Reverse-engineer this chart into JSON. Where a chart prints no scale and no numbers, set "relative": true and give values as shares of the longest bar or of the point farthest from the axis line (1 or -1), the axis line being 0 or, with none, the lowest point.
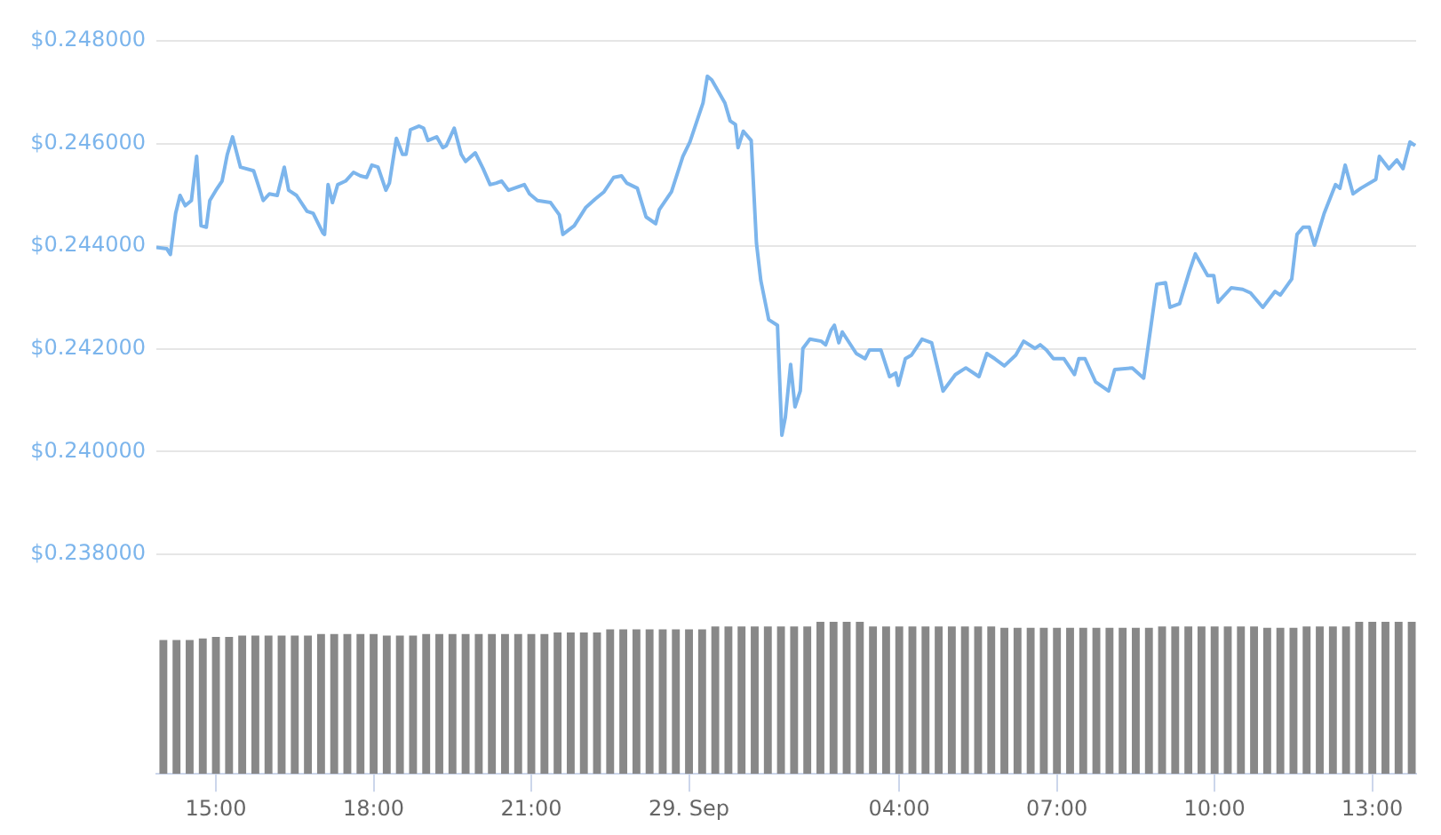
{
  "chart_data": [
    {
      "type": "line",
      "color": "#7cb5ec",
      "marker": "none",
      "line_style": "solid",
      "grid": "y",
      "legend": false,
      "tick_labels": "y",
      "xlim": [
        "--09-28T13:52",
        "--09-29T13:50"
      ],
      "ylim": [
        0.238,
        0.248
      ],
      "yticks": [
        {
          "value": 0.238,
          "label": "$0.238000"
        },
        {
          "value": 0.24,
          "label": "$0.240000"
        },
        {
          "value": 0.242,
          "label": "$0.242000"
        },
        {
          "value": 0.244,
          "label": "$0.244000"
        },
        {
          "value": 0.246,
          "label": "$0.246000"
        },
        {
          "value": 0.248,
          "label": "$0.248000"
        }
      ],
      "x": [
        "--09-28T13:52",
        "--09-28T14:04",
        "--09-28T14:08",
        "--09-28T14:14",
        "--09-28T14:19",
        "--09-28T14:25",
        "--09-28T14:32",
        "--09-28T14:38",
        "--09-28T14:43",
        "--09-28T14:49",
        "--09-28T14:53",
        "--09-28T15:00",
        "--09-28T15:07",
        "--09-28T15:13",
        "--09-28T15:19",
        "--09-28T15:28",
        "--09-28T15:43",
        "--09-28T15:54",
        "--09-28T16:01",
        "--09-28T16:10",
        "--09-28T16:18",
        "--09-28T16:23",
        "--09-28T16:32",
        "--09-28T16:44",
        "--09-28T16:51",
        "--09-28T17:02",
        "--09-28T17:04",
        "--09-28T17:08",
        "--09-28T17:13",
        "--09-28T17:19",
        "--09-28T17:28",
        "--09-28T17:37",
        "--09-28T17:45",
        "--09-28T17:52",
        "--09-28T17:58",
        "--09-28T18:05",
        "--09-28T18:14",
        "--09-28T18:18",
        "--09-28T18:26",
        "--09-28T18:33",
        "--09-28T18:37",
        "--09-28T18:42",
        "--09-28T18:52",
        "--09-28T18:57",
        "--09-28T19:02",
        "--09-28T19:12",
        "--09-28T19:19",
        "--09-28T19:23",
        "--09-28T19:32",
        "--09-28T19:40",
        "--09-28T19:45",
        "--09-28T19:56",
        "--09-28T20:05",
        "--09-28T20:13",
        "--09-28T20:20",
        "--09-28T20:26",
        "--09-28T20:34",
        "--09-28T20:52",
        "--09-28T20:58",
        "--09-28T21:07",
        "--09-28T21:22",
        "--09-28T21:32",
        "--09-28T21:36",
        "--09-28T21:49",
        "--09-28T22:02",
        "--09-28T22:13",
        "--09-28T22:23",
        "--09-28T22:34",
        "--09-28T22:43",
        "--09-28T22:49",
        "--09-28T23:01",
        "--09-28T23:11",
        "--09-28T23:22",
        "--09-28T23:26",
        "--09-28T23:40",
        "--09-28T23:53",
        "--09-29T00:01",
        "--09-29T00:16",
        "--09-29T00:21",
        "--09-29T00:26",
        "--09-29T00:34",
        "--09-29T00:41",
        "--09-29T00:47",
        "--09-29T00:53",
        "--09-29T00:56",
        "--09-29T01:02",
        "--09-29T01:11",
        "--09-29T01:17",
        "--09-29T01:22",
        "--09-29T01:31",
        "--09-29T01:41",
        "--09-29T01:46",
        "--09-29T01:50",
        "--09-29T01:56",
        "--09-29T02:01",
        "--09-29T02:07",
        "--09-29T02:10",
        "--09-29T02:18",
        "--09-29T02:31",
        "--09-29T02:36",
        "--09-29T02:42",
        "--09-29T02:46",
        "--09-29T02:51",
        "--09-29T02:55",
        "--09-29T03:11",
        "--09-29T03:21",
        "--09-29T03:26",
        "--09-29T03:39",
        "--09-29T03:49",
        "--09-29T03:56",
        "--09-29T03:59",
        "--09-29T04:07",
        "--09-29T04:14",
        "--09-29T04:26",
        "--09-29T04:37",
        "--09-29T04:50",
        "--09-29T05:04",
        "--09-29T05:16",
        "--09-29T05:31",
        "--09-29T05:40",
        "--09-29T05:49",
        "--09-29T06:00",
        "--09-29T06:13",
        "--09-29T06:22",
        "--09-29T06:35",
        "--09-29T06:41",
        "--09-29T06:48",
        "--09-29T06:56",
        "--09-29T07:08",
        "--09-29T07:20",
        "--09-29T07:25",
        "--09-29T07:32",
        "--09-29T07:44",
        "--09-29T07:59",
        "--09-29T08:06",
        "--09-29T08:26",
        "--09-29T08:39",
        "--09-29T08:54",
        "--09-29T09:04",
        "--09-29T09:09",
        "--09-29T09:20",
        "--09-29T09:31",
        "--09-29T09:38",
        "--09-29T09:52",
        "--09-29T09:59",
        "--09-29T10:04",
        "--09-29T10:19",
        "--09-29T10:32",
        "--09-29T10:41",
        "--09-29T10:55",
        "--09-29T11:09",
        "--09-29T11:15",
        "--09-29T11:28",
        "--09-29T11:34",
        "--09-29T11:41",
        "--09-29T11:48",
        "--09-29T11:54",
        "--09-29T12:05",
        "--09-29T12:18",
        "--09-29T12:23",
        "--09-29T12:29",
        "--09-29T12:38",
        "--09-29T12:47",
        "--09-29T13:04",
        "--09-29T13:08",
        "--09-29T13:19",
        "--09-29T13:28",
        "--09-29T13:35",
        "--09-29T13:43",
        "--09-29T13:49"
      ],
      "values": [
        0.24398,
        0.24395,
        0.24384,
        0.24464,
        0.24499,
        0.24479,
        0.24489,
        0.24575,
        0.2444,
        0.24437,
        0.24489,
        0.24509,
        0.24527,
        0.24579,
        0.24613,
        0.24554,
        0.24547,
        0.24489,
        0.24502,
        0.24499,
        0.24554,
        0.24509,
        0.24499,
        0.24468,
        0.24464,
        0.24426,
        0.24423,
        0.2452,
        0.24485,
        0.2452,
        0.24527,
        0.24544,
        0.24537,
        0.24534,
        0.24558,
        0.24554,
        0.24509,
        0.24523,
        0.2461,
        0.24579,
        0.24579,
        0.24627,
        0.24634,
        0.2463,
        0.24606,
        0.24613,
        0.24592,
        0.24596,
        0.2463,
        0.24579,
        0.24565,
        0.24582,
        0.24551,
        0.2452,
        0.24523,
        0.24527,
        0.24509,
        0.2452,
        0.24502,
        0.24489,
        0.24485,
        0.24461,
        0.24423,
        0.2444,
        0.24475,
        0.24492,
        0.24506,
        0.24534,
        0.24537,
        0.24523,
        0.24513,
        0.24457,
        0.24444,
        0.24471,
        0.24506,
        0.24575,
        0.24603,
        0.24679,
        0.24731,
        0.24724,
        0.247,
        0.24679,
        0.24644,
        0.24637,
        0.24592,
        0.24624,
        0.24606,
        0.24406,
        0.24333,
        0.24257,
        0.24246,
        0.24032,
        0.24067,
        0.2417,
        0.24087,
        0.24118,
        0.24201,
        0.24219,
        0.24215,
        0.24208,
        0.24236,
        0.24246,
        0.24212,
        0.24233,
        0.24191,
        0.24181,
        0.24198,
        0.24198,
        0.24146,
        0.24153,
        0.24129,
        0.24181,
        0.24188,
        0.24219,
        0.24212,
        0.24118,
        0.2415,
        0.24163,
        0.24146,
        0.24191,
        0.24181,
        0.24167,
        0.24188,
        0.24215,
        0.24201,
        0.24208,
        0.24198,
        0.24181,
        0.24181,
        0.2415,
        0.24181,
        0.24181,
        0.24136,
        0.24118,
        0.2416,
        0.24163,
        0.24143,
        0.24326,
        0.24329,
        0.24281,
        0.24288,
        0.2435,
        0.24385,
        0.24343,
        0.24343,
        0.24291,
        0.24319,
        0.24316,
        0.24309,
        0.24281,
        0.24312,
        0.24305,
        0.24336,
        0.24423,
        0.24437,
        0.24437,
        0.24402,
        0.24464,
        0.2452,
        0.24513,
        0.24558,
        0.24502,
        0.24513,
        0.2453,
        0.24575,
        0.24551,
        0.24568,
        0.24551,
        0.24603,
        0.24596
      ]
    },
    {
      "type": "bar",
      "color": "#888888",
      "relative": true,
      "grid": false,
      "legend": false,
      "tick_labels": "x",
      "xlim": [
        "--09-28T13:52",
        "--09-29T13:50"
      ],
      "xticks": [
        {
          "value": "--09-28T15:00",
          "label": "15:00"
        },
        {
          "value": "--09-28T18:00",
          "label": "18:00"
        },
        {
          "value": "--09-28T21:00",
          "label": "21:00"
        },
        {
          "value": "--09-29T00:00",
          "label": "29. Sep"
        },
        {
          "value": "--09-29T04:00",
          "label": "04:00"
        },
        {
          "value": "--09-29T07:00",
          "label": "07:00"
        },
        {
          "value": "--09-29T10:00",
          "label": "10:00"
        },
        {
          "value": "--09-29T13:00",
          "label": "13:00"
        }
      ],
      "x": [
        "--09-28T14:00",
        "--09-28T14:15",
        "--09-28T14:30",
        "--09-28T14:45",
        "--09-28T15:00",
        "--09-28T15:15",
        "--09-28T15:30",
        "--09-28T15:45",
        "--09-28T16:00",
        "--09-28T16:15",
        "--09-28T16:30",
        "--09-28T16:45",
        "--09-28T17:00",
        "--09-28T17:15",
        "--09-28T17:30",
        "--09-28T17:45",
        "--09-28T18:00",
        "--09-28T18:15",
        "--09-28T18:30",
        "--09-28T18:45",
        "--09-28T19:00",
        "--09-28T19:15",
        "--09-28T19:30",
        "--09-28T19:45",
        "--09-28T20:00",
        "--09-28T20:15",
        "--09-28T20:30",
        "--09-28T20:45",
        "--09-28T21:00",
        "--09-28T21:15",
        "--09-28T21:30",
        "--09-28T21:45",
        "--09-28T22:00",
        "--09-28T22:15",
        "--09-28T22:30",
        "--09-28T22:45",
        "--09-28T23:00",
        "--09-28T23:15",
        "--09-28T23:30",
        "--09-28T23:45",
        "--09-29T00:00",
        "--09-29T00:15",
        "--09-29T00:30",
        "--09-29T00:45",
        "--09-29T01:00",
        "--09-29T01:15",
        "--09-29T01:30",
        "--09-29T01:45",
        "--09-29T02:00",
        "--09-29T02:15",
        "--09-29T02:30",
        "--09-29T02:45",
        "--09-29T03:00",
        "--09-29T03:15",
        "--09-29T03:30",
        "--09-29T03:45",
        "--09-29T04:00",
        "--09-29T04:15",
        "--09-29T04:30",
        "--09-29T04:45",
        "--09-29T05:00",
        "--09-29T05:15",
        "--09-29T05:30",
        "--09-29T05:45",
        "--09-29T06:00",
        "--09-29T06:15",
        "--09-29T06:30",
        "--09-29T06:45",
        "--09-29T07:00",
        "--09-29T07:15",
        "--09-29T07:30",
        "--09-29T07:45",
        "--09-29T08:00",
        "--09-29T08:15",
        "--09-29T08:30",
        "--09-29T08:45",
        "--09-29T09:00",
        "--09-29T09:15",
        "--09-29T09:30",
        "--09-29T09:45",
        "--09-29T10:00",
        "--09-29T10:15",
        "--09-29T10:30",
        "--09-29T10:45",
        "--09-29T11:00",
        "--09-29T11:15",
        "--09-29T11:30",
        "--09-29T11:45",
        "--09-29T12:00",
        "--09-29T12:15",
        "--09-29T12:30",
        "--09-29T12:45",
        "--09-29T13:00",
        "--09-29T13:15",
        "--09-29T13:30",
        "--09-29T13:45"
      ],
      "values": [
        0.88,
        0.88,
        0.88,
        0.89,
        0.9,
        0.9,
        0.91,
        0.91,
        0.91,
        0.91,
        0.91,
        0.91,
        0.92,
        0.92,
        0.92,
        0.92,
        0.92,
        0.91,
        0.91,
        0.91,
        0.92,
        0.92,
        0.92,
        0.92,
        0.92,
        0.92,
        0.92,
        0.92,
        0.92,
        0.92,
        0.93,
        0.93,
        0.93,
        0.93,
        0.95,
        0.95,
        0.95,
        0.95,
        0.95,
        0.95,
        0.95,
        0.95,
        0.97,
        0.97,
        0.97,
        0.97,
        0.97,
        0.97,
        0.97,
        0.97,
        1,
        1,
        1,
        1,
        0.97,
        0.97,
        0.97,
        0.97,
        0.97,
        0.97,
        0.97,
        0.97,
        0.97,
        0.97,
        0.96,
        0.96,
        0.96,
        0.96,
        0.96,
        0.96,
        0.96,
        0.96,
        0.96,
        0.96,
        0.96,
        0.96,
        0.97,
        0.97,
        0.97,
        0.97,
        0.97,
        0.97,
        0.97,
        0.97,
        0.96,
        0.96,
        0.96,
        0.97,
        0.97,
        0.97,
        0.97,
        1,
        1,
        1,
        1,
        1
      ]
    }
  ]
}
